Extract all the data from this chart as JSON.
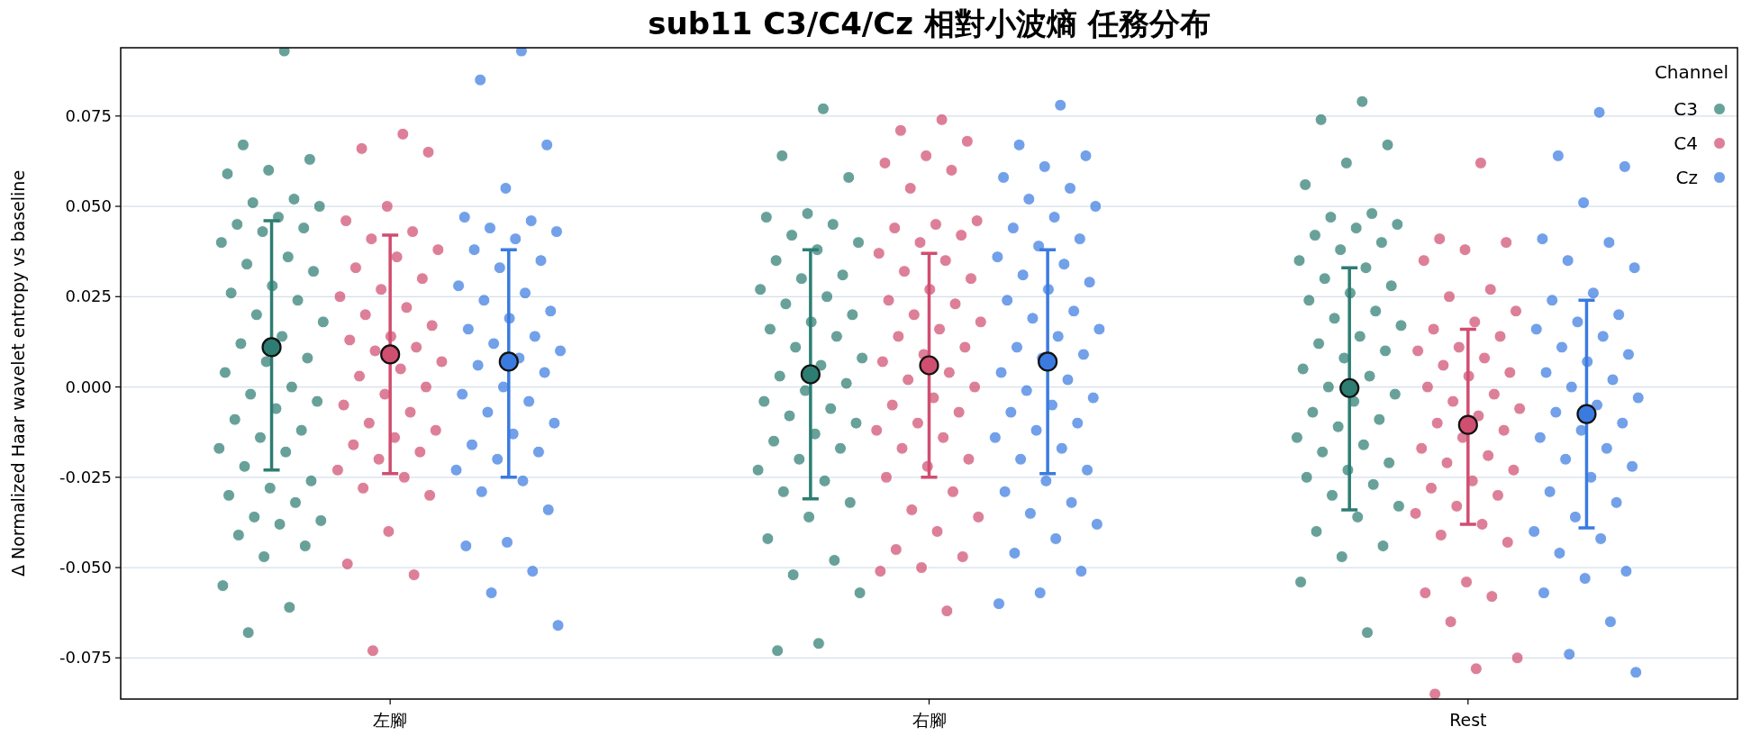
{
  "chart_data": {
    "type": "scatter",
    "title": "sub11 C3/C4/Cz 相對小波熵 任務分布",
    "ylabel": "Δ Normalized Haar wavelet entropy vs baseline",
    "legend_title": "Channel",
    "categories": [
      "左腳",
      "右腳",
      "Rest"
    ],
    "ylim": [
      -0.0864,
      0.0939
    ],
    "yticks": [
      {
        "value": -0.075,
        "label": "-0.075"
      },
      {
        "value": -0.05,
        "label": "-0.050"
      },
      {
        "value": -0.025,
        "label": "-0.025"
      },
      {
        "value": 0,
        "label": "0.000"
      },
      {
        "value": 0.025,
        "label": "0.025"
      },
      {
        "value": 0.05,
        "label": "0.050"
      },
      {
        "value": 0.075,
        "label": "0.075"
      }
    ],
    "grid": "y",
    "legend": "top right",
    "marker": "circle",
    "series": [
      {
        "name": "C3",
        "color": "#2e7d72",
        "x": [
          "左腳",
          "左腳",
          "左腳",
          "左腳",
          "左腳",
          "左腳",
          "左腳",
          "左腳",
          "左腳",
          "左腳",
          "左腳",
          "左腳",
          "左腳",
          "左腳",
          "左腳",
          "左腳",
          "左腳",
          "左腳",
          "左腳",
          "左腳",
          "左腳",
          "左腳",
          "左腳",
          "左腳",
          "左腳",
          "左腳",
          "左腳",
          "左腳",
          "左腳",
          "左腳",
          "左腳",
          "左腳",
          "左腳",
          "左腳",
          "左腳",
          "左腳",
          "左腳",
          "左腳",
          "左腳",
          "左腳",
          "左腳",
          "左腳",
          "左腳",
          "左腳",
          "左腳",
          "左腳",
          "左腳",
          "左腳",
          "左腳",
          "右腳",
          "右腳",
          "右腳",
          "右腳",
          "右腳",
          "右腳",
          "右腳",
          "右腳",
          "右腳",
          "右腳",
          "右腳",
          "右腳",
          "右腳",
          "右腳",
          "右腳",
          "右腳",
          "右腳",
          "右腳",
          "右腳",
          "右腳",
          "右腳",
          "右腳",
          "右腳",
          "右腳",
          "右腳",
          "右腳",
          "右腳",
          "右腳",
          "右腳",
          "右腳",
          "右腳",
          "右腳",
          "右腳",
          "右腳",
          "右腳",
          "右腳",
          "右腳",
          "右腳",
          "右腳",
          "右腳",
          "右腳",
          "右腳",
          "右腳",
          "右腳",
          "Rest",
          "Rest",
          "Rest",
          "Rest",
          "Rest",
          "Rest",
          "Rest",
          "Rest",
          "Rest",
          "Rest",
          "Rest",
          "Rest",
          "Rest",
          "Rest",
          "Rest",
          "Rest",
          "Rest",
          "Rest",
          "Rest",
          "Rest",
          "Rest",
          "Rest",
          "Rest",
          "Rest",
          "Rest",
          "Rest",
          "Rest",
          "Rest",
          "Rest",
          "Rest",
          "Rest",
          "Rest",
          "Rest",
          "Rest",
          "Rest",
          "Rest",
          "Rest",
          "Rest",
          "Rest",
          "Rest",
          "Rest",
          "Rest",
          "Rest",
          "Rest",
          "Rest",
          "Rest",
          "Rest",
          "Rest"
        ],
        "values": [
          0.093,
          0.067,
          0.063,
          0.06,
          0.059,
          0.052,
          0.051,
          0.05,
          0.047,
          0.045,
          0.044,
          0.043,
          0.04,
          0.036,
          0.034,
          0.032,
          0.028,
          0.026,
          0.024,
          0.02,
          0.018,
          0.014,
          0.012,
          0.008,
          0.007,
          0.004,
          0.0,
          -0.002,
          -0.004,
          -0.006,
          -0.009,
          -0.012,
          -0.014,
          -0.017,
          -0.018,
          -0.022,
          -0.026,
          -0.028,
          -0.03,
          -0.032,
          -0.036,
          -0.037,
          -0.038,
          -0.041,
          -0.044,
          -0.047,
          -0.055,
          -0.061,
          -0.068,
          0.077,
          0.064,
          0.058,
          0.048,
          0.047,
          0.045,
          0.042,
          0.04,
          0.038,
          0.035,
          0.031,
          0.03,
          0.027,
          0.025,
          0.023,
          0.02,
          0.018,
          0.016,
          0.014,
          0.011,
          0.008,
          0.006,
          0.003,
          0.001,
          -0.001,
          -0.004,
          -0.006,
          -0.008,
          -0.01,
          -0.013,
          -0.015,
          -0.017,
          -0.02,
          -0.023,
          -0.026,
          -0.029,
          -0.032,
          -0.036,
          -0.042,
          -0.048,
          -0.052,
          -0.057,
          -0.071,
          -0.073,
          0.079,
          0.074,
          0.067,
          0.062,
          0.056,
          0.048,
          0.047,
          0.045,
          0.044,
          0.042,
          0.04,
          0.038,
          0.035,
          0.033,
          0.03,
          0.028,
          0.026,
          0.024,
          0.021,
          0.019,
          0.017,
          0.014,
          0.012,
          0.01,
          0.008,
          0.005,
          0.003,
          0.0,
          -0.002,
          -0.004,
          -0.007,
          -0.009,
          -0.011,
          -0.014,
          -0.016,
          -0.018,
          -0.021,
          -0.023,
          -0.025,
          -0.027,
          -0.03,
          -0.033,
          -0.036,
          -0.04,
          -0.044,
          -0.047,
          -0.054,
          -0.068
        ]
      },
      {
        "name": "C4",
        "color": "#d04e70",
        "x": [
          "左腳",
          "左腳",
          "左腳",
          "左腳",
          "左腳",
          "左腳",
          "左腳",
          "左腳",
          "左腳",
          "左腳",
          "左腳",
          "左腳",
          "左腳",
          "左腳",
          "左腳",
          "左腳",
          "左腳",
          "左腳",
          "左腳",
          "左腳",
          "左腳",
          "左腳",
          "左腳",
          "左腳",
          "左腳",
          "左腳",
          "左腳",
          "左腳",
          "左腳",
          "左腳",
          "左腳",
          "左腳",
          "左腳",
          "左腳",
          "左腳",
          "左腳",
          "左腳",
          "左腳",
          "左腳",
          "左腳",
          "左腳",
          "右腳",
          "右腳",
          "右腳",
          "右腳",
          "右腳",
          "右腳",
          "右腳",
          "右腳",
          "右腳",
          "右腳",
          "右腳",
          "右腳",
          "右腳",
          "右腳",
          "右腳",
          "右腳",
          "右腳",
          "右腳",
          "右腳",
          "右腳",
          "右腳",
          "右腳",
          "右腳",
          "右腳",
          "右腳",
          "右腳",
          "右腳",
          "右腳",
          "右腳",
          "右腳",
          "右腳",
          "右腳",
          "右腳",
          "右腳",
          "右腳",
          "右腳",
          "右腳",
          "右腳",
          "右腳",
          "右腳",
          "右腳",
          "右腳",
          "右腳",
          "右腳",
          "右腳",
          "右腳",
          "右腳",
          "右腳",
          "Rest",
          "Rest",
          "Rest",
          "Rest",
          "Rest",
          "Rest",
          "Rest",
          "Rest",
          "Rest",
          "Rest",
          "Rest",
          "Rest",
          "Rest",
          "Rest",
          "Rest",
          "Rest",
          "Rest",
          "Rest",
          "Rest",
          "Rest",
          "Rest",
          "Rest",
          "Rest",
          "Rest",
          "Rest",
          "Rest",
          "Rest",
          "Rest",
          "Rest",
          "Rest",
          "Rest",
          "Rest",
          "Rest",
          "Rest",
          "Rest",
          "Rest",
          "Rest",
          "Rest",
          "Rest",
          "Rest",
          "Rest",
          "Rest",
          "Rest",
          "Rest"
        ],
        "values": [
          0.07,
          0.066,
          0.065,
          0.05,
          0.046,
          0.043,
          0.041,
          0.038,
          0.036,
          0.033,
          0.03,
          0.027,
          0.025,
          0.022,
          0.02,
          0.017,
          0.014,
          0.013,
          0.011,
          0.01,
          0.007,
          0.005,
          0.003,
          0.0,
          -0.002,
          -0.005,
          -0.007,
          -0.01,
          -0.012,
          -0.014,
          -0.016,
          -0.018,
          -0.02,
          -0.023,
          -0.025,
          -0.028,
          -0.03,
          -0.04,
          -0.049,
          -0.052,
          -0.073,
          0.074,
          0.071,
          0.068,
          0.064,
          0.062,
          0.06,
          0.055,
          0.046,
          0.045,
          0.044,
          0.042,
          0.04,
          0.037,
          0.035,
          0.032,
          0.03,
          0.027,
          0.024,
          0.023,
          0.02,
          0.018,
          0.016,
          0.014,
          0.011,
          0.009,
          0.007,
          0.004,
          0.002,
          0.0,
          -0.003,
          -0.005,
          -0.007,
          -0.01,
          -0.012,
          -0.014,
          -0.017,
          -0.02,
          -0.022,
          -0.025,
          -0.029,
          -0.034,
          -0.036,
          -0.04,
          -0.045,
          -0.047,
          -0.05,
          -0.051,
          -0.062,
          0.062,
          0.041,
          0.04,
          0.038,
          0.035,
          0.027,
          0.025,
          0.021,
          0.018,
          0.016,
          0.014,
          0.011,
          0.01,
          0.008,
          0.006,
          0.004,
          0.003,
          0.0,
          -0.002,
          -0.004,
          -0.006,
          -0.008,
          -0.01,
          -0.012,
          -0.014,
          -0.017,
          -0.019,
          -0.021,
          -0.023,
          -0.026,
          -0.028,
          -0.03,
          -0.033,
          -0.035,
          -0.038,
          -0.041,
          -0.043,
          -0.054,
          -0.057,
          -0.058,
          -0.065,
          -0.075,
          -0.078,
          -0.085
        ]
      },
      {
        "name": "Cz",
        "color": "#3b7be0",
        "x": [
          "左腳",
          "左腳",
          "左腳",
          "左腳",
          "左腳",
          "左腳",
          "左腳",
          "左腳",
          "左腳",
          "左腳",
          "左腳",
          "左腳",
          "左腳",
          "左腳",
          "左腳",
          "左腳",
          "左腳",
          "左腳",
          "左腳",
          "左腳",
          "左腳",
          "左腳",
          "左腳",
          "左腳",
          "左腳",
          "左腳",
          "左腳",
          "左腳",
          "左腳",
          "左腳",
          "左腳",
          "左腳",
          "左腳",
          "左腳",
          "左腳",
          "左腳",
          "左腳",
          "左腳",
          "左腳",
          "左腳",
          "左腳",
          "左腳",
          "右腳",
          "右腳",
          "右腳",
          "右腳",
          "右腳",
          "右腳",
          "右腳",
          "右腳",
          "右腳",
          "右腳",
          "右腳",
          "右腳",
          "右腳",
          "右腳",
          "右腳",
          "右腳",
          "右腳",
          "右腳",
          "右腳",
          "右腳",
          "右腳",
          "右腳",
          "右腳",
          "右腳",
          "右腳",
          "右腳",
          "右腳",
          "右腳",
          "右腳",
          "右腳",
          "右腳",
          "右腳",
          "右腳",
          "右腳",
          "右腳",
          "右腳",
          "右腳",
          "右腳",
          "右腳",
          "右腳",
          "右腳",
          "右腳",
          "右腳",
          "右腳",
          "右腳",
          "右腳",
          "右腳",
          "Rest",
          "Rest",
          "Rest",
          "Rest",
          "Rest",
          "Rest",
          "Rest",
          "Rest",
          "Rest",
          "Rest",
          "Rest",
          "Rest",
          "Rest",
          "Rest",
          "Rest",
          "Rest",
          "Rest",
          "Rest",
          "Rest",
          "Rest",
          "Rest",
          "Rest",
          "Rest",
          "Rest",
          "Rest",
          "Rest",
          "Rest",
          "Rest",
          "Rest",
          "Rest",
          "Rest",
          "Rest",
          "Rest",
          "Rest",
          "Rest",
          "Rest",
          "Rest",
          "Rest",
          "Rest",
          "Rest",
          "Rest",
          "Rest"
        ],
        "values": [
          0.093,
          0.085,
          0.067,
          0.055,
          0.047,
          0.046,
          0.044,
          0.043,
          0.041,
          0.038,
          0.035,
          0.033,
          0.028,
          0.026,
          0.024,
          0.021,
          0.019,
          0.016,
          0.014,
          0.012,
          0.01,
          0.008,
          0.006,
          0.004,
          0.0,
          -0.002,
          -0.004,
          -0.007,
          -0.01,
          -0.013,
          -0.016,
          -0.018,
          -0.02,
          -0.023,
          -0.026,
          -0.029,
          -0.034,
          -0.043,
          -0.044,
          -0.051,
          -0.057,
          -0.066,
          0.078,
          0.067,
          0.064,
          0.061,
          0.058,
          0.055,
          0.052,
          0.05,
          0.047,
          0.044,
          0.041,
          0.039,
          0.036,
          0.034,
          0.031,
          0.029,
          0.027,
          0.024,
          0.021,
          0.019,
          0.016,
          0.014,
          0.011,
          0.009,
          0.008,
          0.004,
          0.002,
          -0.001,
          -0.003,
          -0.005,
          -0.007,
          -0.01,
          -0.012,
          -0.014,
          -0.017,
          -0.02,
          -0.023,
          -0.026,
          -0.029,
          -0.032,
          -0.035,
          -0.038,
          -0.042,
          -0.046,
          -0.051,
          -0.057,
          -0.06,
          0.076,
          0.064,
          0.061,
          0.051,
          0.041,
          0.04,
          0.035,
          0.033,
          0.026,
          0.024,
          0.02,
          0.018,
          0.016,
          0.014,
          0.011,
          0.009,
          0.007,
          0.004,
          0.002,
          0.0,
          -0.003,
          -0.005,
          -0.007,
          -0.01,
          -0.012,
          -0.014,
          -0.017,
          -0.02,
          -0.022,
          -0.025,
          -0.029,
          -0.032,
          -0.036,
          -0.04,
          -0.042,
          -0.046,
          -0.051,
          -0.053,
          -0.057,
          -0.065,
          -0.074,
          -0.079
        ]
      },
      {
        "color": "#2e7d72",
        "x": [
          "左腳",
          "右腳",
          "Rest"
        ],
        "values": [
          0.011,
          0.0035,
          -0.0003
        ],
        "errors": [
          [
            -0.023,
            0.046
          ],
          [
            -0.031,
            0.038
          ],
          [
            -0.034,
            0.033
          ]
        ]
      },
      {
        "color": "#d04e70",
        "x": [
          "左腳",
          "右腳",
          "Rest"
        ],
        "values": [
          0.009,
          0.006,
          -0.0105
        ],
        "errors": [
          [
            -0.024,
            0.042
          ],
          [
            -0.025,
            0.037
          ],
          [
            -0.038,
            0.016
          ]
        ]
      },
      {
        "color": "#3b7be0",
        "x": [
          "左腳",
          "右腳",
          "Rest"
        ],
        "values": [
          0.007,
          0.007,
          -0.0075
        ],
        "errors": [
          [
            -0.025,
            0.038
          ],
          [
            -0.024,
            0.038
          ],
          [
            -0.039,
            0.024
          ]
        ]
      }
    ]
  }
}
